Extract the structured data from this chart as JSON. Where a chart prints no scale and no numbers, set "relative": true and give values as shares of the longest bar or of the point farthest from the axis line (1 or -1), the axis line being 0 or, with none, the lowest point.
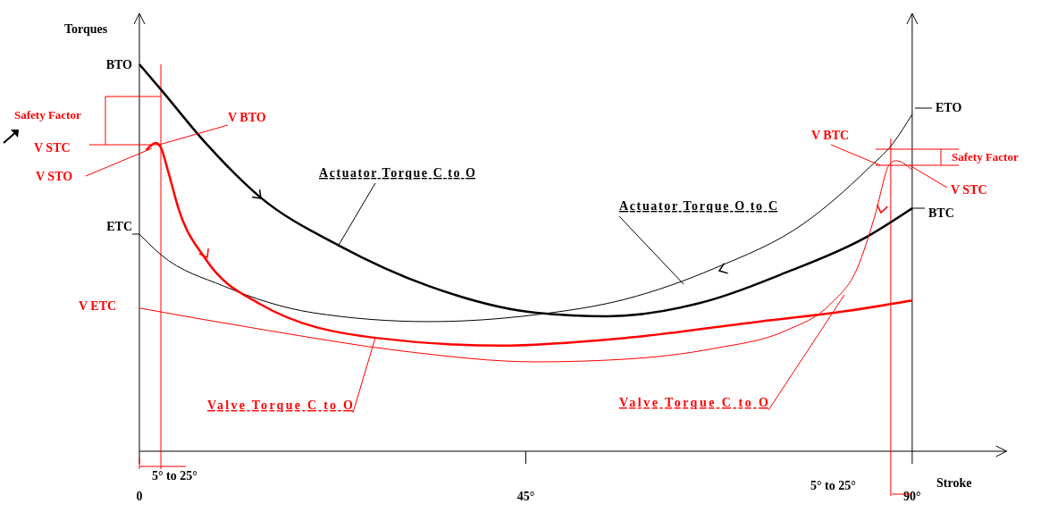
{
  "chart_data": {
    "type": "line",
    "xlabel": "Stroke",
    "ylabel": "Torques",
    "relative": true,
    "xlim": [
      0,
      101
    ],
    "xticks": [
      {
        "value": 0,
        "label": "0"
      },
      {
        "value": 45,
        "label": "45°"
      },
      {
        "value": 90,
        "label": "90°"
      }
    ],
    "series": [
      {
        "color": "#000000",
        "x": [
          0,
          2.5,
          7.7,
          14.0,
          23.3,
          33.7,
          46.2,
          54.5,
          64.9,
          75.3,
          84.7,
          90
        ],
        "values": [
          1.0,
          0.935,
          0.797,
          0.658,
          0.531,
          0.427,
          0.358,
          0.349,
          0.381,
          0.462,
          0.554,
          0.628
        ]
      },
      {
        "color": "#000000",
        "x": [
          0,
          2.5,
          9.8,
          20.2,
          33.7,
          46.2,
          56.6,
          67.0,
          77.4,
          84.7,
          87.8,
          90
        ],
        "values": [
          0.561,
          0.508,
          0.427,
          0.358,
          0.335,
          0.353,
          0.393,
          0.473,
          0.589,
          0.727,
          0.797,
          0.871
        ]
      },
      {
        "color": "#ff0000",
        "x": [
          0.8,
          1.9,
          2.5,
          3.3,
          4.6,
          7.7,
          14.0,
          27.5,
          42.0,
          56.6,
          72.2,
          82.6,
          90
        ],
        "values": [
          0.778,
          0.797,
          0.785,
          0.727,
          0.624,
          0.497,
          0.381,
          0.293,
          0.273,
          0.293,
          0.335,
          0.363,
          0.39
        ]
      },
      {
        "color": "#ff0000",
        "x": [
          0,
          15.0,
          30.6,
          46.2,
          56.6,
          67.0,
          75.3,
          80.5,
          83.6,
          85.7,
          87.3,
          88.1,
          90
        ],
        "values": [
          0.37,
          0.312,
          0.259,
          0.231,
          0.238,
          0.266,
          0.312,
          0.381,
          0.473,
          0.612,
          0.739,
          0.751,
          0.727
        ]
      }
    ],
    "ref_lines": [
      {
        "axis": "x",
        "value": 2.5,
        "color": "#ff0000"
      },
      {
        "axis": "x",
        "value": 87.5,
        "color": "#ff0000"
      },
      {
        "axis": "x",
        "value": 90,
        "color": "#000000"
      }
    ],
    "annotations": [
      "BTO",
      "ETC",
      "ETO",
      "BTC",
      "V ETC",
      "Safety Factor",
      "V STC",
      "V STO",
      "V BTO",
      "Actuator Torque C to O",
      "Actuator Torque O to C",
      "Valve Torque C to O",
      "Valve Torque C to O",
      "V BTC",
      "Safety Factor",
      "V STC",
      "5° to 25°",
      "5° to 25°"
    ]
  }
}
